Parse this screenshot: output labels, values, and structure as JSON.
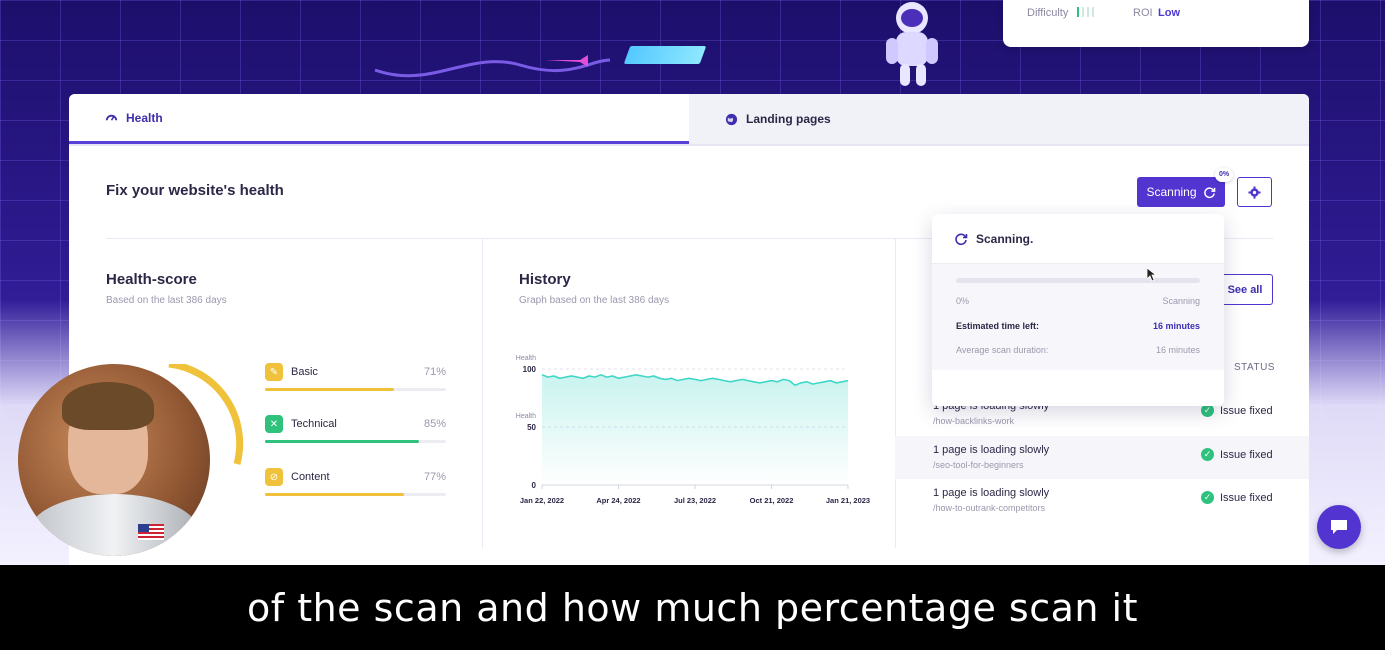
{
  "topcard": {
    "difficulty_label": "Difficulty",
    "roi_label": "ROI",
    "roi_value": "Low"
  },
  "tabs": [
    {
      "label": "Health",
      "icon": "gauge-icon",
      "active": true
    },
    {
      "label": "Landing pages",
      "icon": "globe-icon",
      "active": false
    }
  ],
  "header": {
    "title": "Fix your website's health",
    "scan_button": "Scanning",
    "scan_percent": "0%"
  },
  "health_score": {
    "title": "Health-score",
    "subtitle": "Based on the last 386 days",
    "metrics": [
      {
        "name": "Basic",
        "value": "71%",
        "percent": 71,
        "color": "#f0c23b",
        "icon": "pencil-icon"
      },
      {
        "name": "Technical",
        "value": "85%",
        "percent": 85,
        "color": "#2fc27d",
        "icon": "tools-icon"
      },
      {
        "name": "Content",
        "value": "77%",
        "percent": 77,
        "color": "#f0c23b",
        "icon": "content-icon"
      }
    ]
  },
  "history": {
    "title": "History",
    "subtitle": "Graph based on the last 386 days",
    "chart_data": {
      "type": "area",
      "ylabel_top": "Health",
      "ylabel_mid": "Health",
      "y_ticks": [
        "100",
        "50",
        "0"
      ],
      "x_ticks": [
        "Jan 22, 2022",
        "Apr 24, 2022",
        "Jul 23, 2022",
        "Oct 21, 2022",
        "Jan 21, 2023"
      ],
      "ylim": [
        0,
        100
      ],
      "values": [
        95,
        93,
        94,
        92,
        93,
        94,
        93,
        92,
        94,
        93,
        95,
        93,
        94,
        92,
        93,
        94,
        95,
        94,
        93,
        94,
        92,
        91,
        92,
        90,
        91,
        92,
        91,
        90,
        91,
        92,
        91,
        90,
        89,
        90,
        91,
        90,
        89,
        88,
        89,
        90,
        89,
        91,
        90,
        86,
        88,
        89,
        87,
        88,
        89,
        90,
        88,
        89,
        90
      ]
    }
  },
  "issues": {
    "see_all": "See all",
    "status_header": "STATUS",
    "rows": [
      {
        "text": "1 page is loading slowly",
        "path": "/how-backlinks-work",
        "status": "Issue fixed"
      },
      {
        "text": "1 page is loading slowly",
        "path": "/seo-tool-for-beginners",
        "status": "Issue fixed"
      },
      {
        "text": "1 page is loading slowly",
        "path": "/how-to-outrank-competitors",
        "status": "Issue fixed"
      }
    ]
  },
  "scan_popover": {
    "title": "Scanning.",
    "progress": 0,
    "start_label": "0%",
    "end_label": "Scanning",
    "est_label": "Estimated time left:",
    "est_value": "16 minutes",
    "avg_label": "Average scan duration:",
    "avg_value": "16 minutes"
  },
  "subtitle": "of the scan and how much percentage scan it",
  "colors": {
    "accent": "#5235d0",
    "success": "#2fc27d",
    "warning": "#f0c23b",
    "chart_line": "#3fd6c7"
  }
}
